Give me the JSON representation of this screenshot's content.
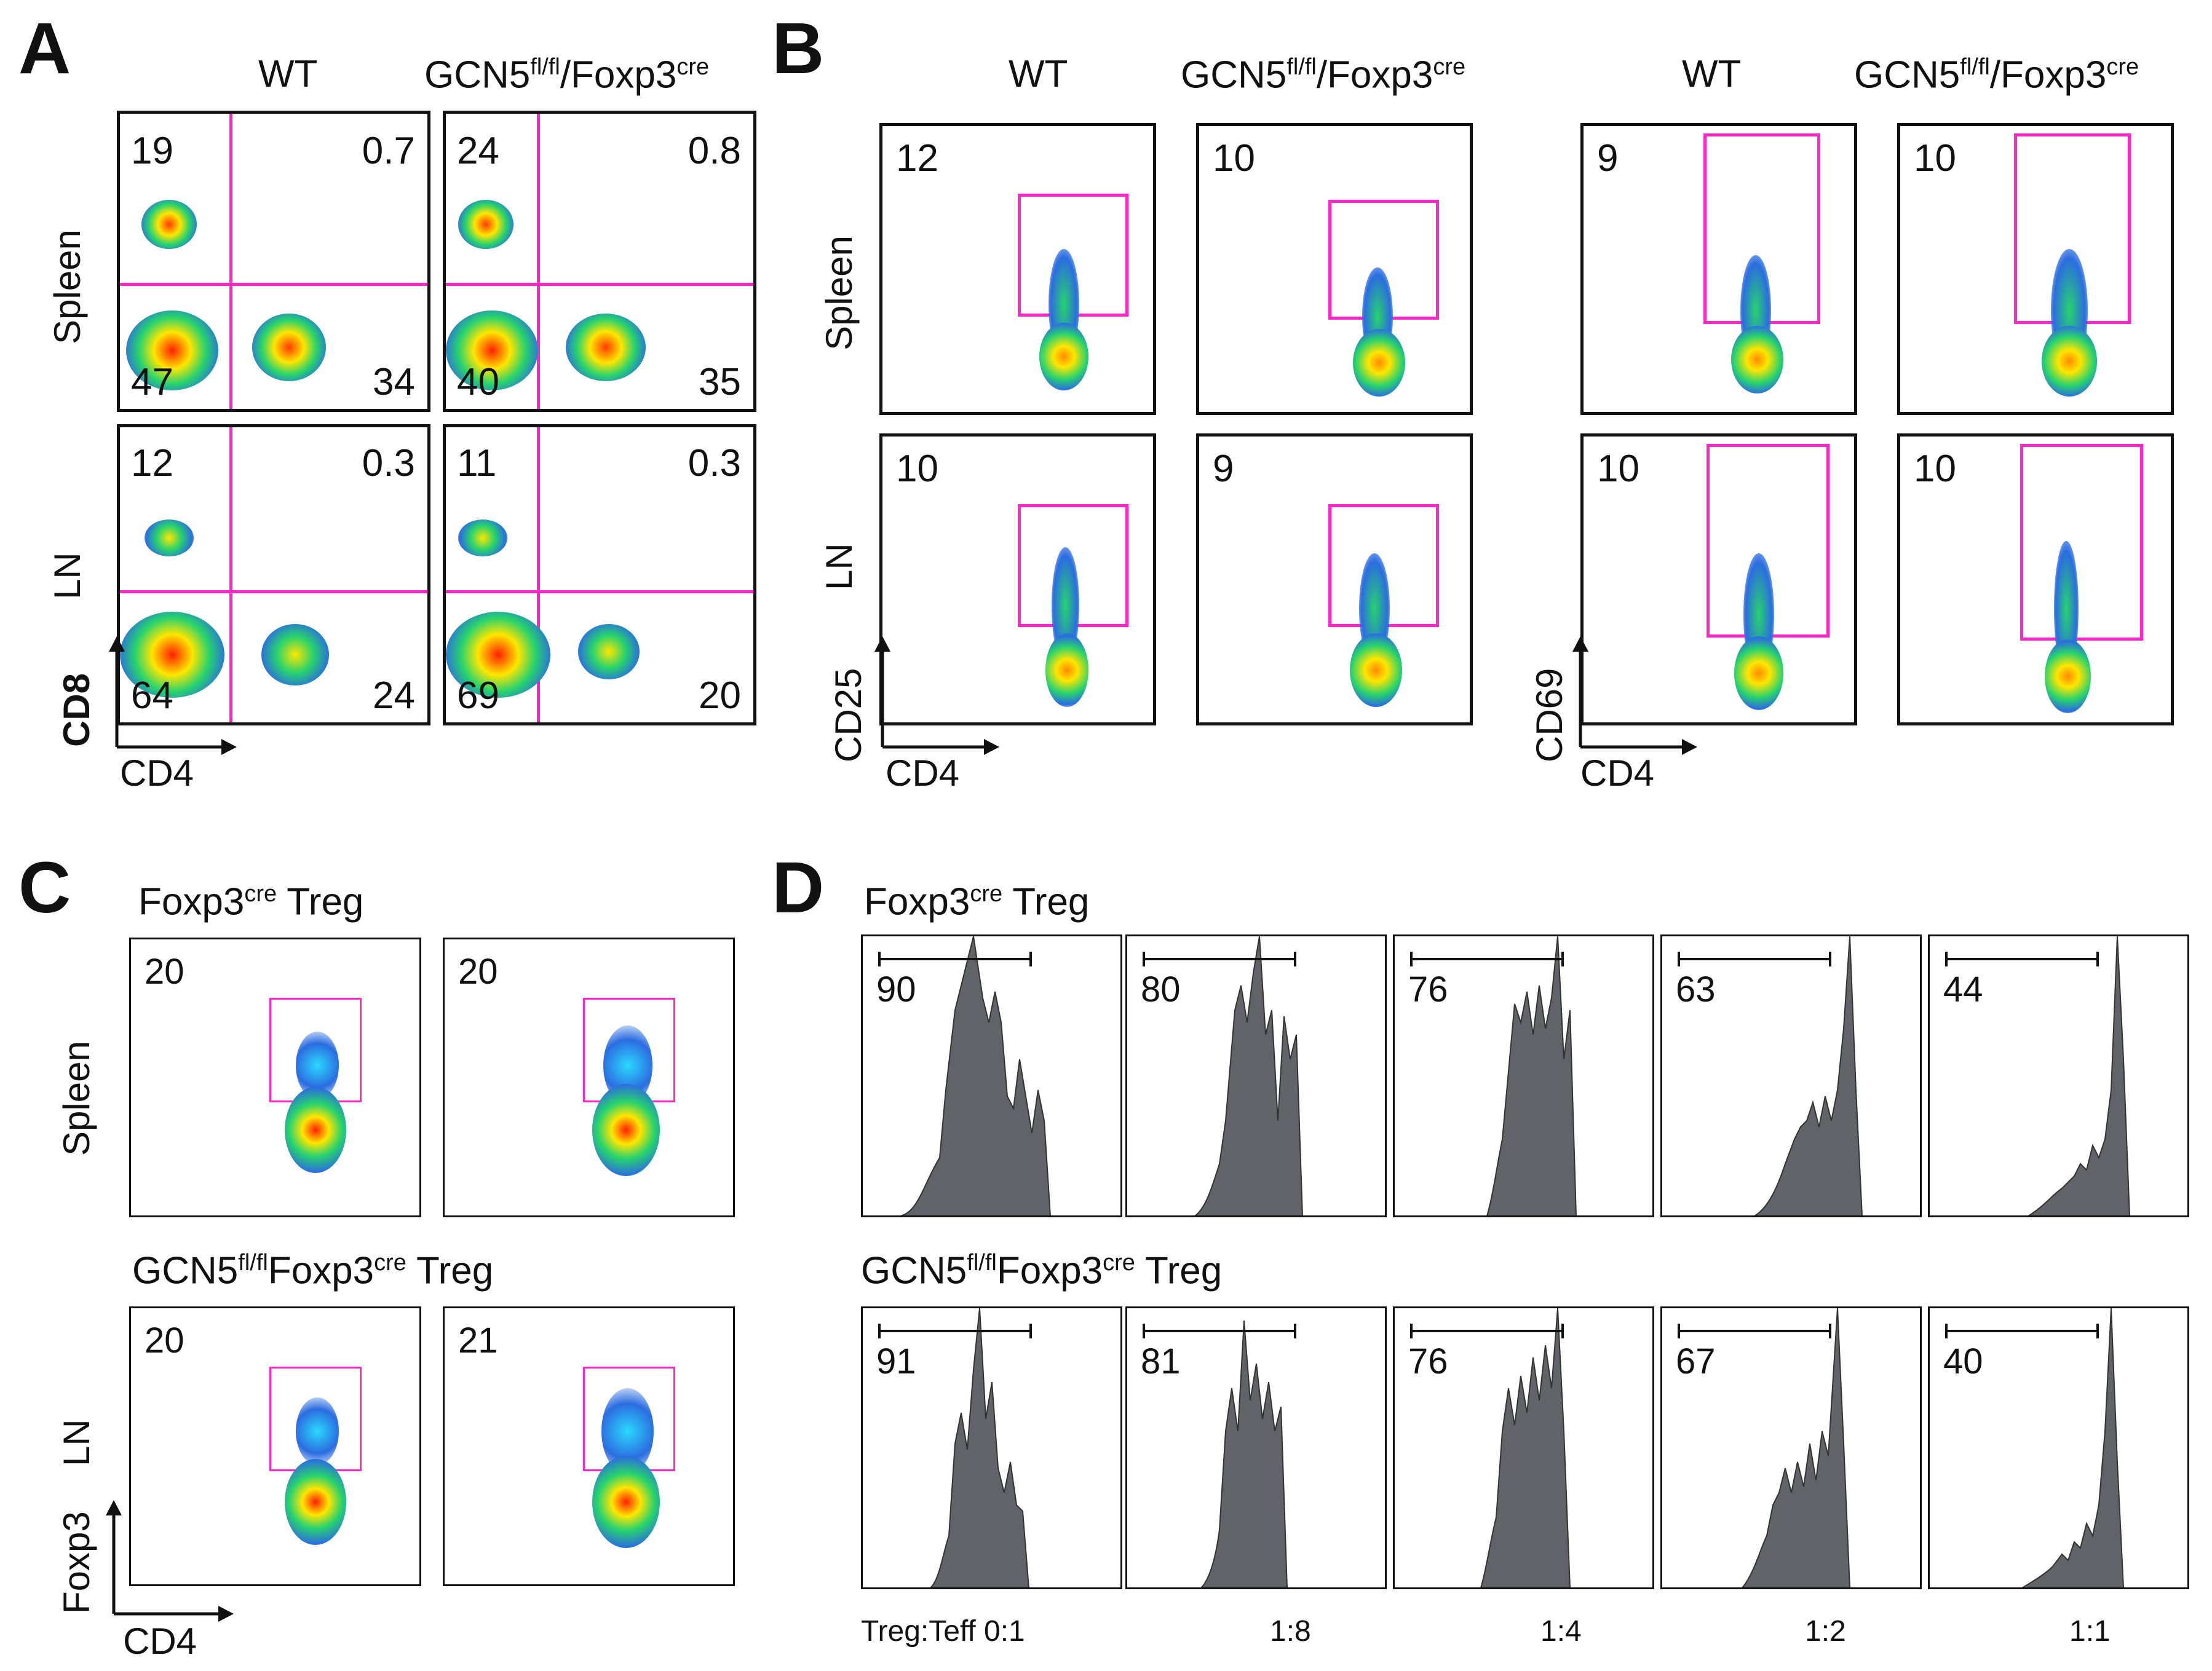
{
  "panels": {
    "A": {
      "letter": "A",
      "col_titles": {
        "wt": "WT",
        "ko_main": "GCN5",
        "ko_sup": "fl/fl",
        "ko_tail": "/Foxp3",
        "ko_sup2": "cre"
      },
      "row_labels": [
        "Spleen",
        "LN"
      ],
      "x_axis": "CD4",
      "y_axis": "CD8",
      "plots": [
        {
          "q": [
            "19",
            "0.7",
            "47",
            "34"
          ]
        },
        {
          "q": [
            "24",
            "0.8",
            "40",
            "35"
          ]
        },
        {
          "q": [
            "12",
            "0.3",
            "64",
            "24"
          ]
        },
        {
          "q": [
            "11",
            "0.3",
            "69",
            "20"
          ]
        }
      ]
    },
    "B": {
      "letter": "B",
      "col_titles": {
        "wt": "WT",
        "ko_main": "GCN5",
        "ko_sup": "fl/fl",
        "ko_tail": "/Foxp3",
        "ko_sup2": "cre"
      },
      "row_labels": [
        "Spleen",
        "LN"
      ],
      "x_axis_left": "CD4",
      "y_axis_left": "CD25",
      "x_axis_right": "CD4",
      "y_axis_right": "CD69",
      "plots": [
        "12",
        "10",
        "9",
        "10",
        "10",
        "9",
        "10",
        "10"
      ]
    },
    "C": {
      "letter": "C",
      "subtitle_top": {
        "main": "Foxp3",
        "sup": "cre",
        "tail": " Treg"
      },
      "subtitle_bottom": {
        "main": "GCN5",
        "sup": "fl/fl",
        "mid": "Foxp3",
        "sup2": "cre",
        "tail": " Treg"
      },
      "row_labels": [
        "Spleen",
        "LN"
      ],
      "x_axis": "CD4",
      "y_axis": "Foxp3",
      "plots": [
        "20",
        "20",
        "20",
        "21"
      ]
    },
    "D": {
      "letter": "D",
      "subtitle_top": {
        "main": "Foxp3",
        "sup": "cre",
        "tail": " Treg"
      },
      "subtitle_bottom": {
        "main": "GCN5",
        "sup": "fl/fl",
        "mid": "Foxp3",
        "sup2": "cre",
        "tail": " Treg"
      },
      "top_values": [
        "90",
        "80",
        "76",
        "63",
        "44"
      ],
      "bottom_values": [
        "91",
        "81",
        "76",
        "67",
        "40"
      ],
      "ratio_label": "Treg:Teff",
      "ratios": [
        "0:1",
        "1:8",
        "1:4",
        "1:2",
        "1:1"
      ]
    }
  }
}
